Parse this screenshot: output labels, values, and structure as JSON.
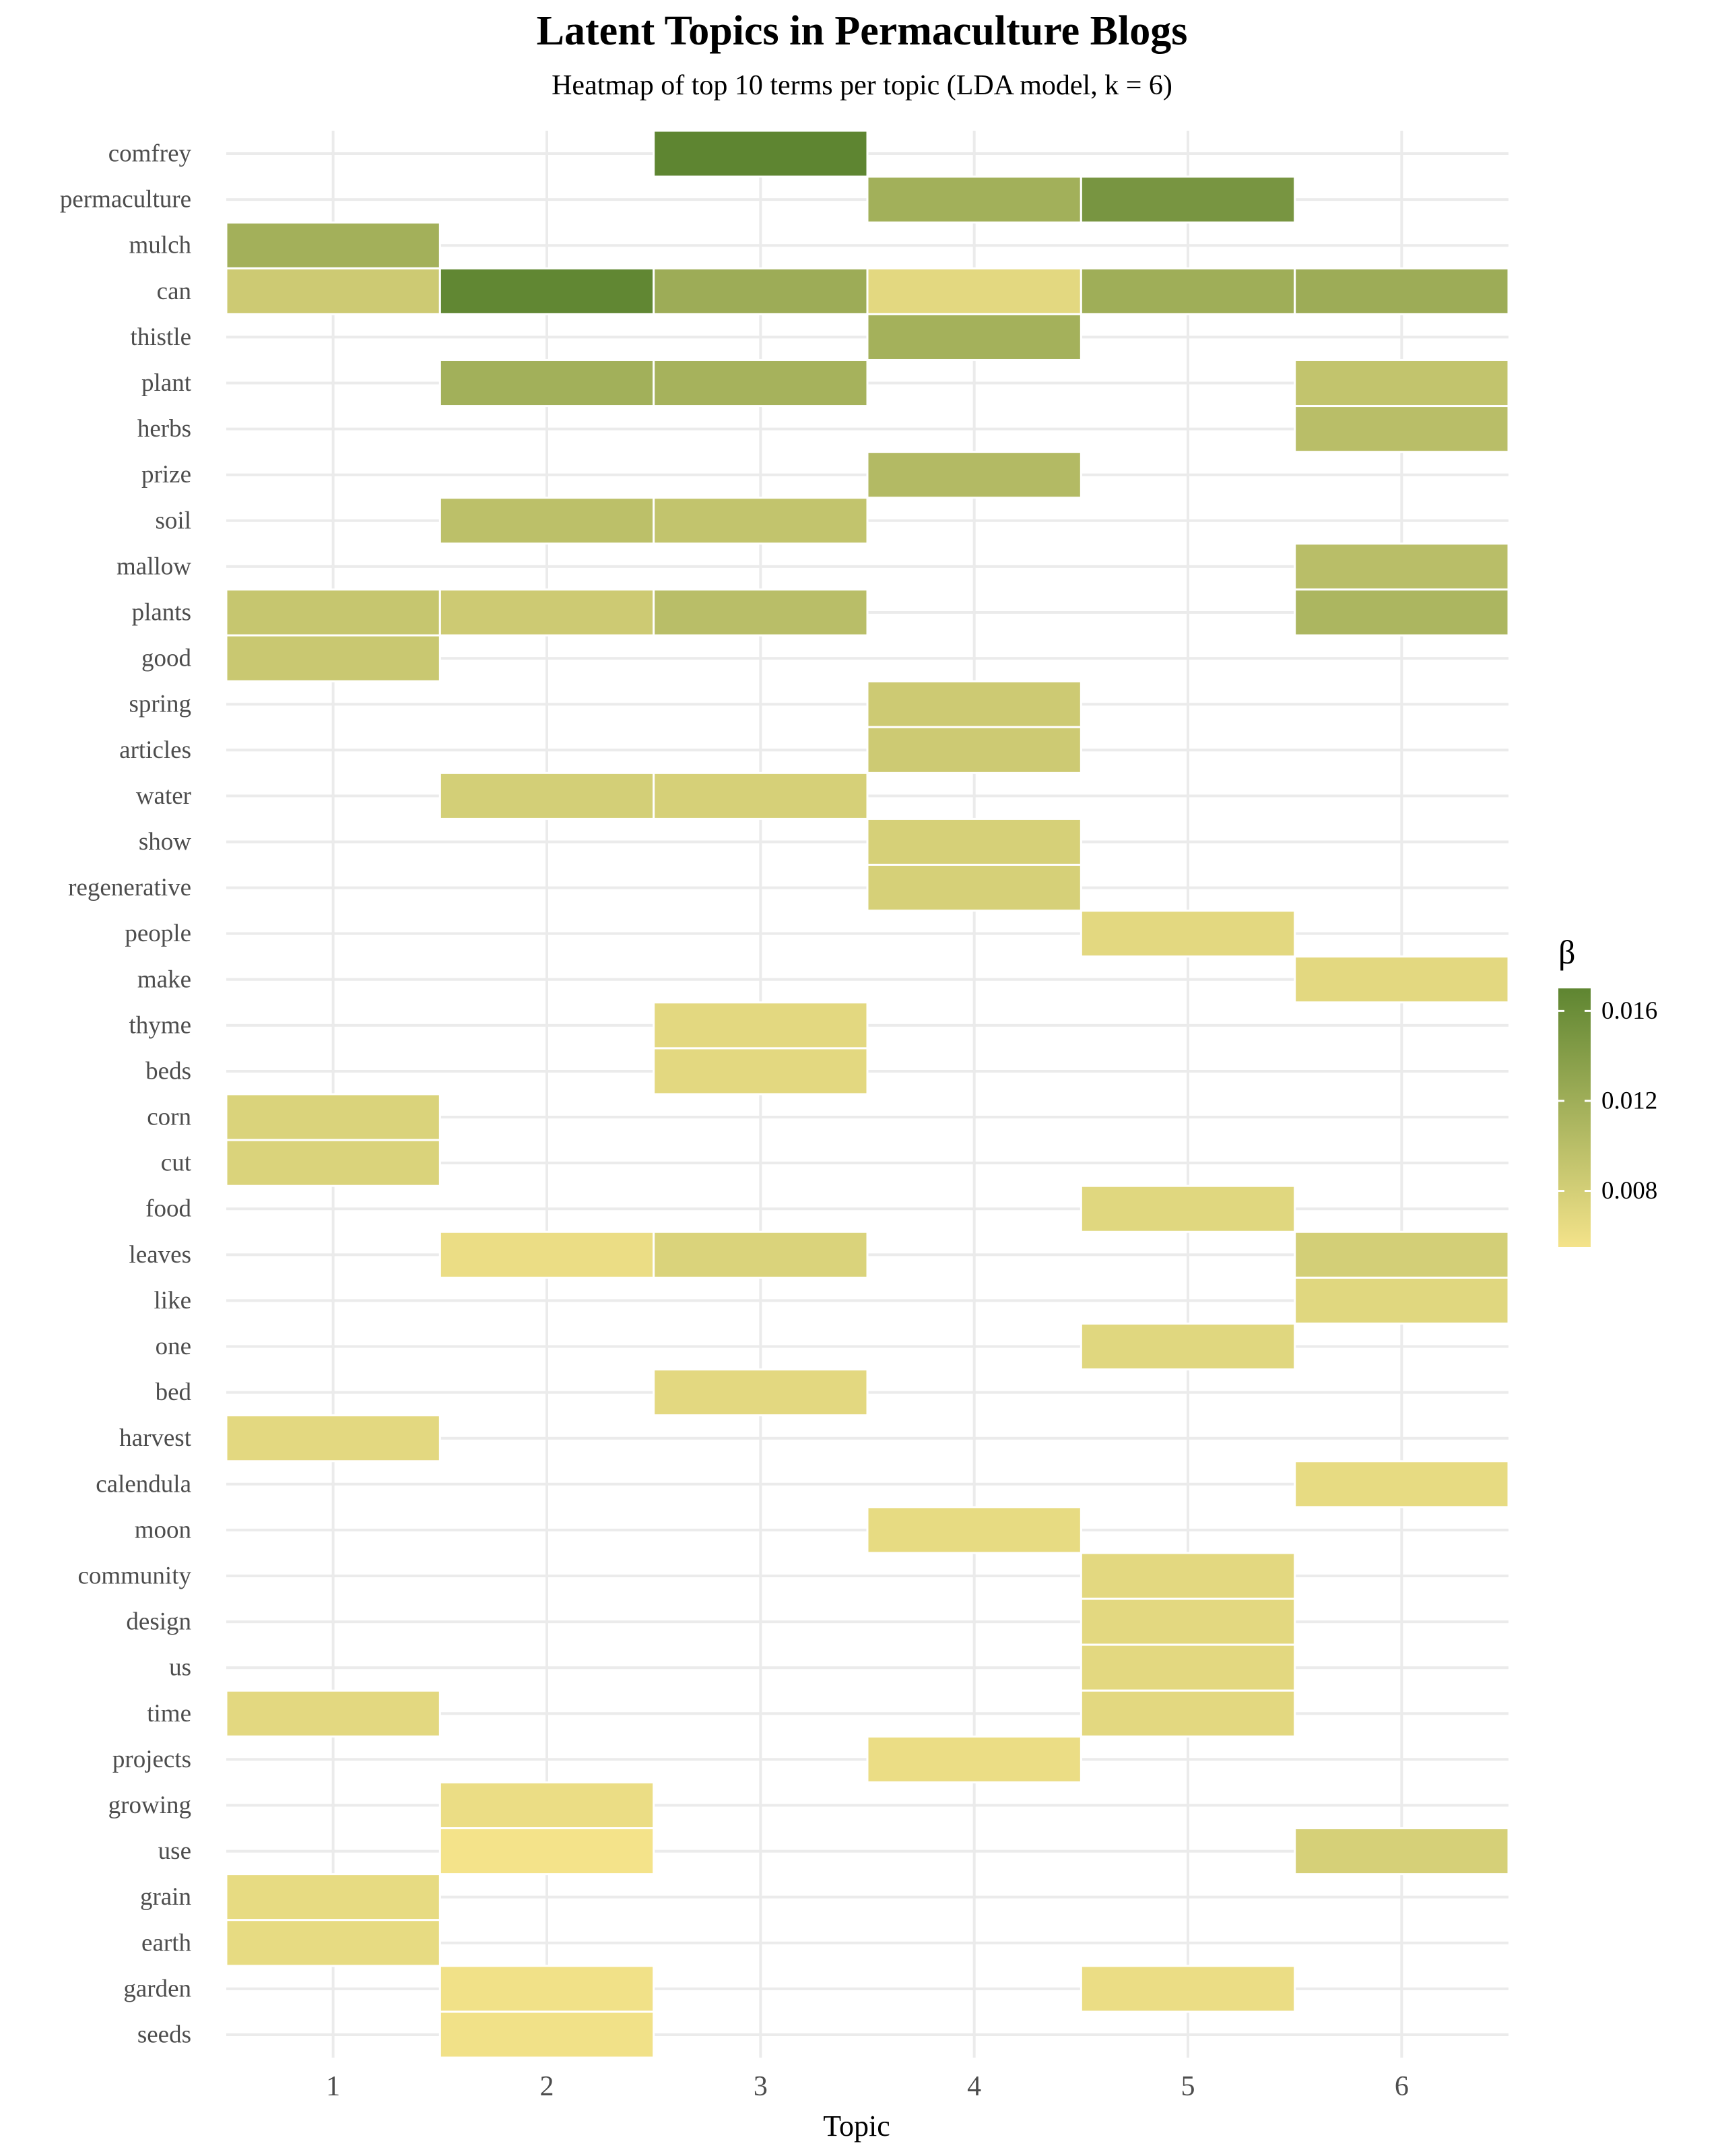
{
  "chart_data": {
    "type": "heatmap",
    "title": "Latent Topics in Permaculture Blogs",
    "subtitle": "Heatmap of top 10 terms per topic (LDA model, k = 6)",
    "xlabel": "Topic",
    "ylabel": "",
    "x_categories": [
      "1",
      "2",
      "3",
      "4",
      "5",
      "6"
    ],
    "y_categories": [
      "comfrey",
      "permaculture",
      "mulch",
      "can",
      "thistle",
      "plant",
      "herbs",
      "prize",
      "soil",
      "mallow",
      "plants",
      "good",
      "spring",
      "articles",
      "water",
      "show",
      "regenerative",
      "people",
      "make",
      "thyme",
      "beds",
      "corn",
      "cut",
      "food",
      "leaves",
      "like",
      "one",
      "bed",
      "harvest",
      "calendula",
      "moon",
      "community",
      "design",
      "us",
      "time",
      "projects",
      "growing",
      "use",
      "grain",
      "earth",
      "garden",
      "seeds"
    ],
    "cells": [
      {
        "term": "comfrey",
        "topic": 3,
        "beta": 0.017
      },
      {
        "term": "permaculture",
        "topic": 4,
        "beta": 0.0118
      },
      {
        "term": "permaculture",
        "topic": 5,
        "beta": 0.015
      },
      {
        "term": "mulch",
        "topic": 1,
        "beta": 0.0117
      },
      {
        "term": "can",
        "topic": 1,
        "beta": 0.0085
      },
      {
        "term": "can",
        "topic": 2,
        "beta": 0.0168
      },
      {
        "term": "can",
        "topic": 3,
        "beta": 0.0122
      },
      {
        "term": "can",
        "topic": 4,
        "beta": 0.0068
      },
      {
        "term": "can",
        "topic": 5,
        "beta": 0.012
      },
      {
        "term": "can",
        "topic": 6,
        "beta": 0.0122
      },
      {
        "term": "thistle",
        "topic": 4,
        "beta": 0.0116
      },
      {
        "term": "plant",
        "topic": 2,
        "beta": 0.0118
      },
      {
        "term": "plant",
        "topic": 3,
        "beta": 0.0115
      },
      {
        "term": "plant",
        "topic": 6,
        "beta": 0.0093
      },
      {
        "term": "herbs",
        "topic": 6,
        "beta": 0.01
      },
      {
        "term": "prize",
        "topic": 4,
        "beta": 0.0105
      },
      {
        "term": "soil",
        "topic": 2,
        "beta": 0.0098
      },
      {
        "term": "soil",
        "topic": 3,
        "beta": 0.0093
      },
      {
        "term": "mallow",
        "topic": 6,
        "beta": 0.01
      },
      {
        "term": "plants",
        "topic": 1,
        "beta": 0.009
      },
      {
        "term": "plants",
        "topic": 2,
        "beta": 0.0085
      },
      {
        "term": "plants",
        "topic": 3,
        "beta": 0.01
      },
      {
        "term": "plants",
        "topic": 6,
        "beta": 0.011
      },
      {
        "term": "good",
        "topic": 1,
        "beta": 0.0088
      },
      {
        "term": "spring",
        "topic": 4,
        "beta": 0.0085
      },
      {
        "term": "articles",
        "topic": 4,
        "beta": 0.0085
      },
      {
        "term": "water",
        "topic": 2,
        "beta": 0.008
      },
      {
        "term": "water",
        "topic": 3,
        "beta": 0.0078
      },
      {
        "term": "show",
        "topic": 4,
        "beta": 0.0078
      },
      {
        "term": "regenerative",
        "topic": 4,
        "beta": 0.0078
      },
      {
        "term": "people",
        "topic": 5,
        "beta": 0.0068
      },
      {
        "term": "make",
        "topic": 6,
        "beta": 0.0068
      },
      {
        "term": "thyme",
        "topic": 3,
        "beta": 0.0068
      },
      {
        "term": "beds",
        "topic": 3,
        "beta": 0.0068
      },
      {
        "term": "corn",
        "topic": 1,
        "beta": 0.0075
      },
      {
        "term": "cut",
        "topic": 1,
        "beta": 0.0075
      },
      {
        "term": "food",
        "topic": 5,
        "beta": 0.007
      },
      {
        "term": "leaves",
        "topic": 2,
        "beta": 0.0062
      },
      {
        "term": "leaves",
        "topic": 3,
        "beta": 0.0075
      },
      {
        "term": "leaves",
        "topic": 6,
        "beta": 0.008
      },
      {
        "term": "like",
        "topic": 6,
        "beta": 0.007
      },
      {
        "term": "one",
        "topic": 5,
        "beta": 0.007
      },
      {
        "term": "bed",
        "topic": 3,
        "beta": 0.0068
      },
      {
        "term": "harvest",
        "topic": 1,
        "beta": 0.0068
      },
      {
        "term": "calendula",
        "topic": 6,
        "beta": 0.0065
      },
      {
        "term": "moon",
        "topic": 4,
        "beta": 0.0065
      },
      {
        "term": "community",
        "topic": 5,
        "beta": 0.0068
      },
      {
        "term": "design",
        "topic": 5,
        "beta": 0.0068
      },
      {
        "term": "us",
        "topic": 5,
        "beta": 0.0068
      },
      {
        "term": "time",
        "topic": 1,
        "beta": 0.0068
      },
      {
        "term": "time",
        "topic": 5,
        "beta": 0.0068
      },
      {
        "term": "projects",
        "topic": 4,
        "beta": 0.0062
      },
      {
        "term": "growing",
        "topic": 2,
        "beta": 0.0062
      },
      {
        "term": "use",
        "topic": 2,
        "beta": 0.0055
      },
      {
        "term": "use",
        "topic": 6,
        "beta": 0.0078
      },
      {
        "term": "grain",
        "topic": 1,
        "beta": 0.0065
      },
      {
        "term": "earth",
        "topic": 1,
        "beta": 0.0065
      },
      {
        "term": "garden",
        "topic": 2,
        "beta": 0.0057
      },
      {
        "term": "garden",
        "topic": 5,
        "beta": 0.0062
      },
      {
        "term": "seeds",
        "topic": 2,
        "beta": 0.0057
      }
    ],
    "legend": {
      "title": "β",
      "placement": "right",
      "ticks": [
        0.008,
        0.012,
        0.016
      ],
      "tick_labels": [
        "0.008",
        "0.012",
        "0.016"
      ],
      "range": [
        0.0055,
        0.017
      ],
      "low_color": "#f4e38a",
      "mid_color": "#a9b45e",
      "high_color": "#5e8531"
    },
    "grid": true
  }
}
